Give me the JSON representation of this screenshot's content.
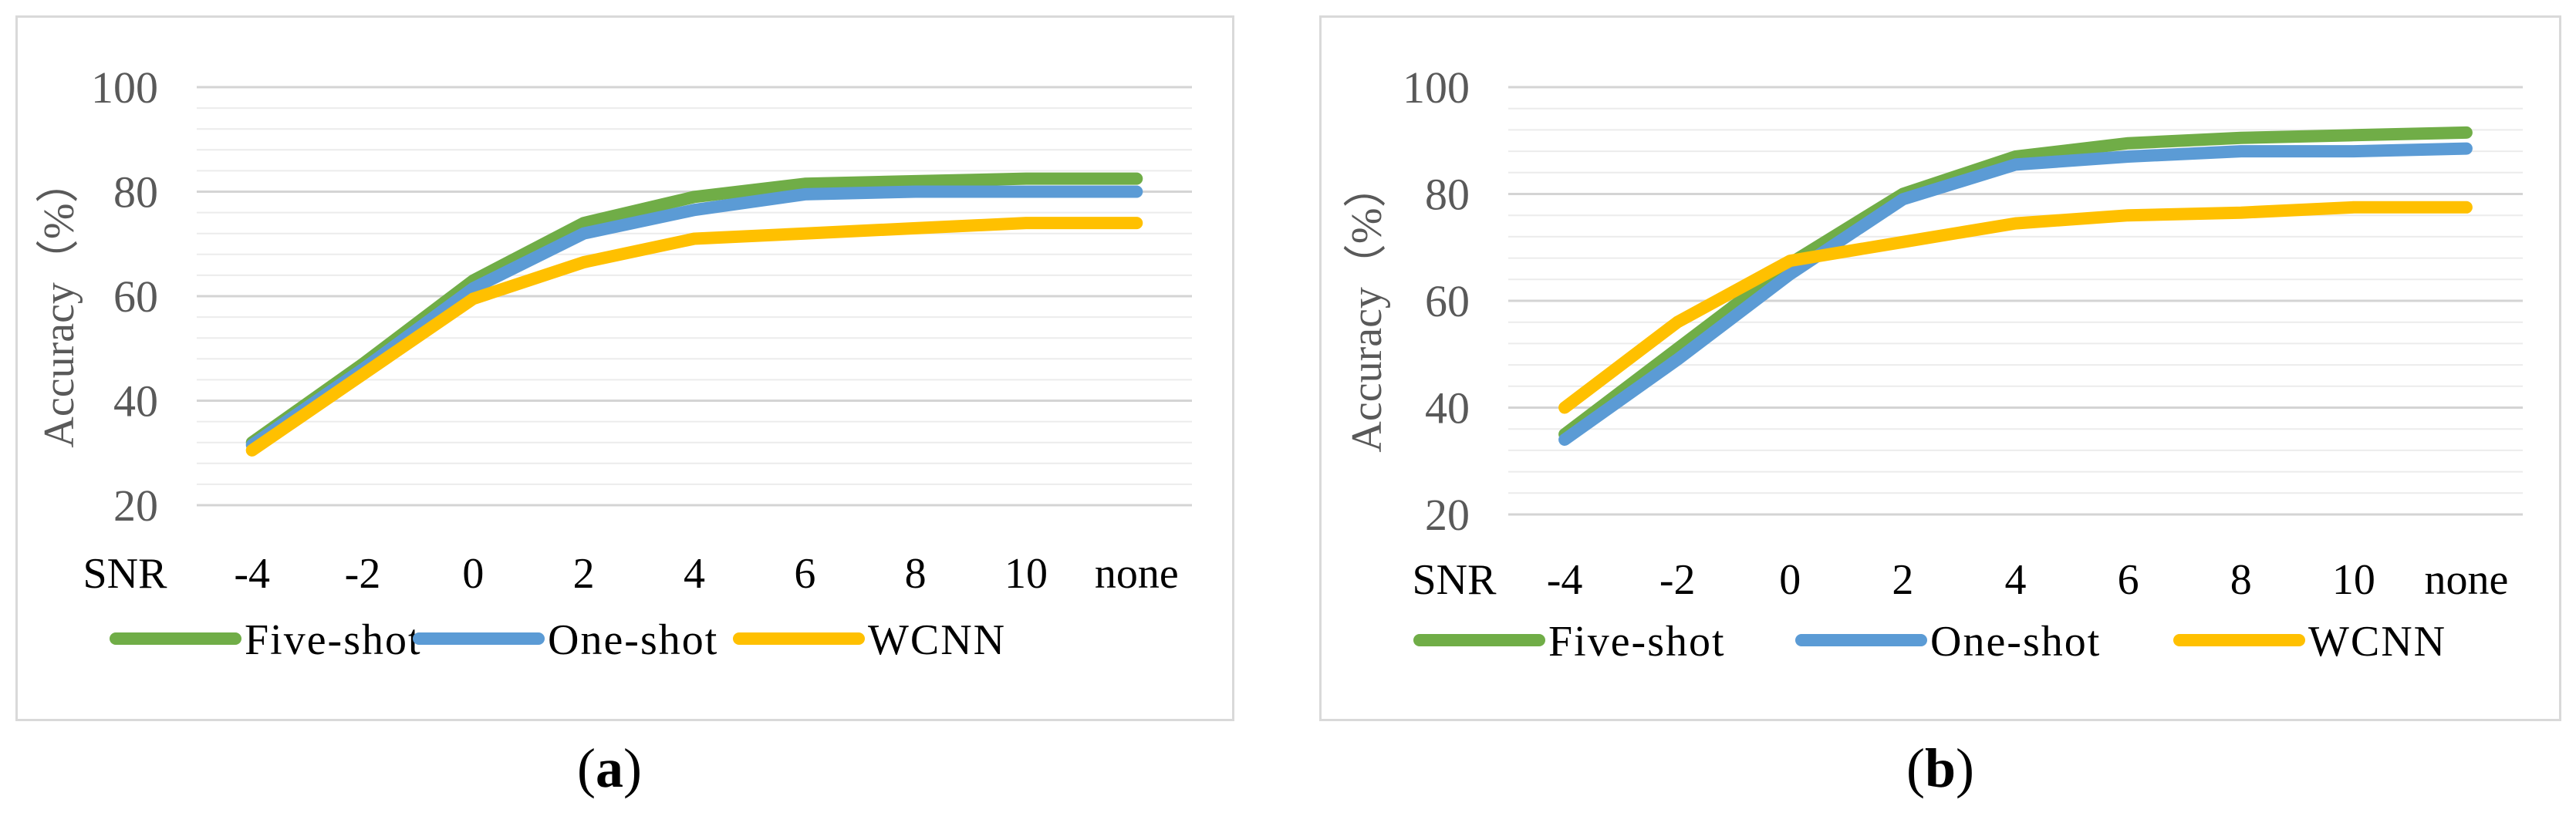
{
  "chart_data": [
    {
      "type": "line",
      "panel": "(a)",
      "ylabel": "Accuracy（%）",
      "xlabel": "SNR",
      "categories": [
        "-4",
        "-2",
        "0",
        "2",
        "4",
        "6",
        "8",
        "10",
        "none"
      ],
      "ylim": [
        20,
        100
      ],
      "yticks": [
        20,
        40,
        60,
        80,
        100
      ],
      "grid": true,
      "legend": "bottom",
      "series": [
        {
          "name": "Five-shot",
          "color": "#70ad47",
          "values": [
            32,
            47,
            63,
            74,
            79,
            81.5,
            82,
            82.5,
            82.5
          ]
        },
        {
          "name": "One-shot",
          "color": "#5b9bd5",
          "values": [
            31.5,
            46,
            61.5,
            72,
            76.5,
            79.5,
            80,
            80,
            80
          ]
        },
        {
          "name": "WCNN",
          "color": "#ffc000",
          "values": [
            30.5,
            45,
            59.5,
            66.5,
            71,
            72,
            73,
            74,
            74
          ]
        }
      ]
    },
    {
      "type": "line",
      "panel": "(b)",
      "ylabel": "Accuracy（%）",
      "xlabel": "SNR",
      "categories": [
        "-4",
        "-2",
        "0",
        "2",
        "4",
        "6",
        "8",
        "10",
        "none"
      ],
      "ylim": [
        20,
        100
      ],
      "yticks": [
        20,
        40,
        60,
        80,
        100
      ],
      "grid": true,
      "legend": "bottom",
      "series": [
        {
          "name": "Five-shot",
          "color": "#70ad47",
          "values": [
            35,
            51,
            67,
            80,
            87,
            89.5,
            90.5,
            91,
            91.5
          ]
        },
        {
          "name": "One-shot",
          "color": "#5b9bd5",
          "values": [
            34,
            49,
            65,
            79,
            85.5,
            87,
            88,
            88,
            88.5
          ]
        },
        {
          "name": "WCNN",
          "color": "#ffc000",
          "values": [
            40,
            56,
            67.5,
            71,
            74.5,
            76,
            76.5,
            77.5,
            77.5
          ]
        }
      ]
    }
  ],
  "captions": [
    {
      "letter": "a"
    },
    {
      "letter": "b"
    }
  ]
}
